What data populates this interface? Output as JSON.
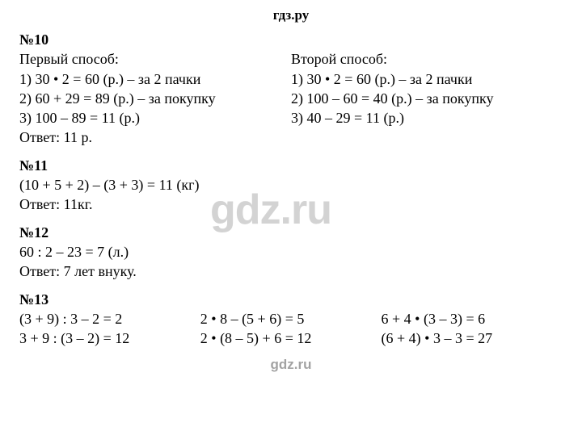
{
  "header": "гдз.ру",
  "watermark": "gdz.ru",
  "footer": "gdz.ru",
  "problems": {
    "p10": {
      "number": "№10",
      "left": {
        "title": "Первый способ:",
        "lines": [
          "1) 30 • 2 = 60 (р.) – за 2 пачки",
          "2) 60 + 29 = 89 (р.) – за покупку",
          "3) 100 – 89 = 11 (р.)"
        ],
        "answer": "Ответ: 11 р."
      },
      "right": {
        "title": "Второй способ:",
        "lines": [
          "1) 30 • 2 = 60 (р.) – за 2 пачки",
          "2) 100 – 60 = 40 (р.) – за покупку",
          "3) 40 – 29 = 11 (р.)"
        ]
      }
    },
    "p11": {
      "number": "№11",
      "lines": [
        "(10 + 5 + 2) – (3 + 3) = 11 (кг)"
      ],
      "answer": "Ответ: 11кг."
    },
    "p12": {
      "number": "№12",
      "lines": [
        "60 : 2 – 23 = 7 (л.)"
      ],
      "answer": "Ответ: 7 лет внуку."
    },
    "p13": {
      "number": "№13",
      "col1": [
        "(3 + 9) : 3 – 2 = 2",
        "3 + 9 : (3 – 2) = 12"
      ],
      "col2": [
        "2 • 8 – (5 + 6) = 5",
        "2 • (8 – 5) + 6 = 12"
      ],
      "col3": [
        "6 + 4 • (3 – 3) = 6",
        "(6 + 4) • 3 – 3 = 27"
      ]
    }
  }
}
